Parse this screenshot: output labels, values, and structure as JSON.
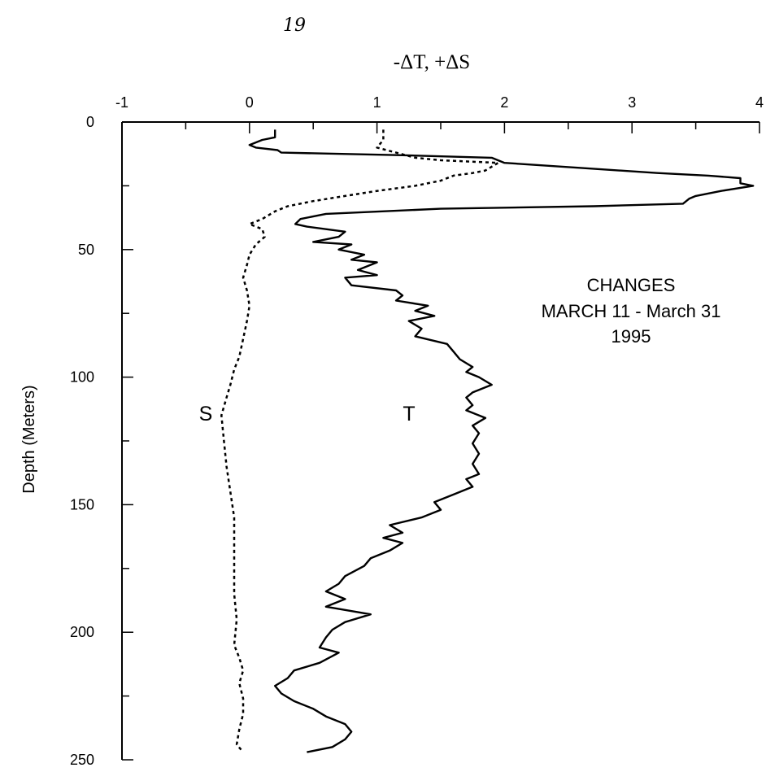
{
  "page_note": "19",
  "chart_data": {
    "type": "line",
    "title": "-ΔT, +ΔS",
    "ylabel": "Depth (Meters)",
    "xlabel": "",
    "xlim": [
      -1,
      4
    ],
    "ylim": [
      0,
      250
    ],
    "y_inverted": true,
    "x_axis_position": "top",
    "x_ticks": [
      -1,
      0,
      1,
      2,
      3,
      4
    ],
    "y_ticks": [
      0,
      50,
      100,
      150,
      200,
      250
    ],
    "annotation": [
      "CHANGES",
      "MARCH 11 - March 31",
      "1995"
    ],
    "series": [
      {
        "name": "T",
        "style": "solid",
        "points": [
          [
            0.2,
            3
          ],
          [
            0.2,
            6
          ],
          [
            0.1,
            7
          ],
          [
            0.0,
            9
          ],
          [
            0.05,
            10
          ],
          [
            0.22,
            11
          ],
          [
            0.25,
            12
          ],
          [
            1.2,
            13
          ],
          [
            1.9,
            14
          ],
          [
            2.0,
            16
          ],
          [
            2.6,
            18
          ],
          [
            3.2,
            20
          ],
          [
            3.6,
            21
          ],
          [
            3.85,
            22
          ],
          [
            3.85,
            24
          ],
          [
            3.95,
            25
          ],
          [
            3.7,
            27
          ],
          [
            3.6,
            28
          ],
          [
            3.5,
            29
          ],
          [
            3.45,
            30
          ],
          [
            3.4,
            32
          ],
          [
            2.7,
            33
          ],
          [
            1.5,
            34
          ],
          [
            0.6,
            36
          ],
          [
            0.4,
            38
          ],
          [
            0.36,
            40
          ],
          [
            0.45,
            41
          ],
          [
            0.6,
            42
          ],
          [
            0.75,
            43
          ],
          [
            0.7,
            45
          ],
          [
            0.5,
            47
          ],
          [
            0.8,
            48
          ],
          [
            0.7,
            50
          ],
          [
            0.9,
            52
          ],
          [
            0.8,
            54
          ],
          [
            1.0,
            55
          ],
          [
            0.85,
            58
          ],
          [
            1.0,
            60
          ],
          [
            0.75,
            61
          ],
          [
            0.8,
            64
          ],
          [
            1.15,
            66
          ],
          [
            1.2,
            68
          ],
          [
            1.15,
            70
          ],
          [
            1.4,
            72
          ],
          [
            1.3,
            74
          ],
          [
            1.45,
            76
          ],
          [
            1.25,
            78
          ],
          [
            1.35,
            81
          ],
          [
            1.3,
            84
          ],
          [
            1.55,
            87
          ],
          [
            1.6,
            90
          ],
          [
            1.65,
            93
          ],
          [
            1.75,
            96
          ],
          [
            1.7,
            98
          ],
          [
            1.8,
            100
          ],
          [
            1.9,
            103
          ],
          [
            1.75,
            106
          ],
          [
            1.7,
            108
          ],
          [
            1.75,
            111
          ],
          [
            1.7,
            113
          ],
          [
            1.85,
            116
          ],
          [
            1.75,
            119
          ],
          [
            1.8,
            122
          ],
          [
            1.75,
            126
          ],
          [
            1.8,
            130
          ],
          [
            1.75,
            134
          ],
          [
            1.8,
            138
          ],
          [
            1.7,
            140
          ],
          [
            1.75,
            143
          ],
          [
            1.6,
            146
          ],
          [
            1.45,
            149
          ],
          [
            1.5,
            152
          ],
          [
            1.35,
            155
          ],
          [
            1.1,
            158
          ],
          [
            1.2,
            161
          ],
          [
            1.05,
            163
          ],
          [
            1.2,
            165
          ],
          [
            1.1,
            168
          ],
          [
            0.95,
            171
          ],
          [
            0.9,
            174
          ],
          [
            0.75,
            178
          ],
          [
            0.7,
            181
          ],
          [
            0.6,
            184
          ],
          [
            0.75,
            187
          ],
          [
            0.6,
            190
          ],
          [
            0.95,
            193
          ],
          [
            0.75,
            196
          ],
          [
            0.65,
            199
          ],
          [
            0.6,
            202
          ],
          [
            0.55,
            206
          ],
          [
            0.7,
            208
          ],
          [
            0.55,
            212
          ],
          [
            0.35,
            215
          ],
          [
            0.3,
            218
          ],
          [
            0.2,
            221
          ],
          [
            0.25,
            224
          ],
          [
            0.35,
            227
          ],
          [
            0.5,
            230
          ],
          [
            0.6,
            233
          ],
          [
            0.75,
            236
          ],
          [
            0.8,
            239
          ],
          [
            0.75,
            242
          ],
          [
            0.65,
            245
          ],
          [
            0.45,
            247
          ]
        ]
      },
      {
        "name": "S",
        "style": "dashed",
        "points": [
          [
            1.05,
            3
          ],
          [
            1.05,
            7
          ],
          [
            1.0,
            10
          ],
          [
            1.15,
            12
          ],
          [
            1.3,
            14
          ],
          [
            1.5,
            15
          ],
          [
            1.95,
            16
          ],
          [
            1.85,
            19
          ],
          [
            1.75,
            20
          ],
          [
            1.6,
            21
          ],
          [
            1.5,
            23
          ],
          [
            1.3,
            25
          ],
          [
            1.0,
            27
          ],
          [
            0.75,
            29
          ],
          [
            0.5,
            31
          ],
          [
            0.3,
            33
          ],
          [
            0.2,
            35
          ],
          [
            0.1,
            38
          ],
          [
            0.0,
            40
          ],
          [
            0.1,
            42
          ],
          [
            0.12,
            45
          ],
          [
            0.05,
            48
          ],
          [
            0.0,
            52
          ],
          [
            -0.02,
            56
          ],
          [
            -0.05,
            61
          ],
          [
            -0.02,
            66
          ],
          [
            0.0,
            72
          ],
          [
            -0.02,
            78
          ],
          [
            -0.05,
            85
          ],
          [
            -0.08,
            92
          ],
          [
            -0.12,
            97
          ],
          [
            -0.15,
            103
          ],
          [
            -0.18,
            108
          ],
          [
            -0.22,
            115
          ],
          [
            -0.2,
            125
          ],
          [
            -0.18,
            135
          ],
          [
            -0.15,
            145
          ],
          [
            -0.12,
            155
          ],
          [
            -0.12,
            165
          ],
          [
            -0.12,
            175
          ],
          [
            -0.12,
            185
          ],
          [
            -0.1,
            195
          ],
          [
            -0.12,
            205
          ],
          [
            -0.08,
            210
          ],
          [
            -0.05,
            215
          ],
          [
            -0.08,
            220
          ],
          [
            -0.05,
            226
          ],
          [
            -0.05,
            232
          ],
          [
            -0.08,
            238
          ],
          [
            -0.1,
            244
          ],
          [
            -0.05,
            247
          ]
        ]
      }
    ]
  }
}
